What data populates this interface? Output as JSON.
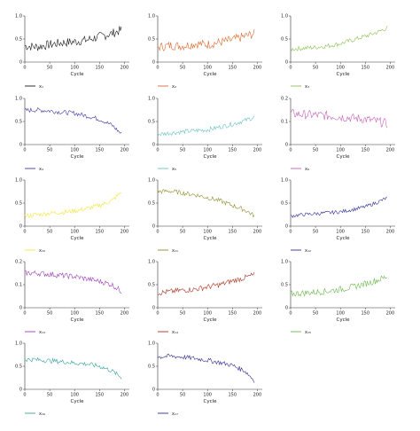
{
  "figure": {
    "xlabel": "Cycle"
  },
  "chart_data": [
    {
      "type": "line",
      "series": [
        {
          "name": "x1",
          "color": "#1a1a1a",
          "noise": 0.1,
          "y": [
            0.35,
            0.33,
            0.38,
            0.42,
            0.44,
            0.48,
            0.55,
            0.62,
            0.7
          ]
        }
      ],
      "legend": "x₁",
      "x": [
        0,
        25,
        50,
        75,
        100,
        125,
        150,
        175,
        195
      ],
      "xticks": [
        0,
        50,
        100,
        150,
        200
      ],
      "xlim": [
        0,
        210
      ],
      "ylim": [
        0,
        1
      ],
      "yticks": [
        "0",
        "0.5",
        "1.0"
      ],
      "xlabel": "Cycle"
    },
    {
      "type": "line",
      "series": [
        {
          "name": "x2",
          "color": "#d9692f",
          "noise": 0.1,
          "y": [
            0.32,
            0.36,
            0.35,
            0.4,
            0.38,
            0.43,
            0.48,
            0.56,
            0.62
          ]
        }
      ],
      "legend": "x₂",
      "x": [
        0,
        25,
        50,
        75,
        100,
        125,
        150,
        175,
        195
      ],
      "xticks": [
        0,
        50,
        100,
        150,
        200
      ],
      "xlim": [
        0,
        210
      ],
      "ylim": [
        0,
        1
      ],
      "yticks": [
        "0",
        "0.5",
        "1.0"
      ],
      "xlabel": "Cycle"
    },
    {
      "type": "line",
      "series": [
        {
          "name": "x3",
          "color": "#8cc152",
          "noise": 0.05,
          "y": [
            0.28,
            0.3,
            0.32,
            0.35,
            0.4,
            0.48,
            0.56,
            0.65,
            0.75
          ]
        }
      ],
      "legend": "x₃",
      "x": [
        0,
        25,
        50,
        75,
        100,
        125,
        150,
        175,
        195
      ],
      "xticks": [
        0,
        50,
        100,
        150,
        200
      ],
      "xlim": [
        0,
        210
      ],
      "ylim": [
        0,
        1
      ],
      "yticks": [
        "0",
        "0.5",
        "1.0"
      ],
      "xlabel": "Cycle"
    },
    {
      "type": "line",
      "series": [
        {
          "name": "x4",
          "color": "#3f3aa6",
          "noise": 0.05,
          "y": [
            0.74,
            0.75,
            0.73,
            0.7,
            0.68,
            0.62,
            0.55,
            0.42,
            0.22
          ]
        }
      ],
      "legend": "x₄",
      "x": [
        0,
        25,
        50,
        75,
        100,
        125,
        150,
        175,
        195
      ],
      "xticks": [
        0,
        50,
        100,
        150,
        200
      ],
      "xlim": [
        0,
        210
      ],
      "ylim": [
        0,
        1
      ],
      "yticks": [
        "0",
        "0.5",
        "1.0"
      ],
      "xlabel": "Cycle"
    },
    {
      "type": "line",
      "series": [
        {
          "name": "x5",
          "color": "#67c2c0",
          "noise": 0.05,
          "y": [
            0.22,
            0.25,
            0.28,
            0.3,
            0.32,
            0.38,
            0.44,
            0.52,
            0.6
          ]
        }
      ],
      "legend": "x₅",
      "x": [
        0,
        25,
        50,
        75,
        100,
        125,
        150,
        175,
        195
      ],
      "xticks": [
        0,
        50,
        100,
        150,
        200
      ],
      "xlim": [
        0,
        210
      ],
      "ylim": [
        0,
        1
      ],
      "yticks": [
        "0",
        "0.5",
        "1.0"
      ],
      "xlabel": "Cycle"
    },
    {
      "type": "line",
      "series": [
        {
          "name": "x6",
          "color": "#c562b3",
          "noise": 0.02,
          "y": [
            0.135,
            0.13,
            0.128,
            0.125,
            0.12,
            0.115,
            0.11,
            0.1,
            0.09
          ]
        }
      ],
      "legend": "x₆",
      "x": [
        0,
        25,
        50,
        75,
        100,
        125,
        150,
        175,
        195
      ],
      "xticks": [
        0,
        50,
        100,
        150,
        200
      ],
      "xlim": [
        0,
        210
      ],
      "ylim": [
        0,
        0.2
      ],
      "yticks": [
        "0",
        "0.1",
        "0.2"
      ],
      "xlabel": "Cycle"
    },
    {
      "type": "line",
      "series": [
        {
          "name": "x10",
          "color": "#f2e63a",
          "noise": 0.05,
          "y": [
            0.22,
            0.25,
            0.28,
            0.3,
            0.33,
            0.38,
            0.45,
            0.55,
            0.75
          ]
        }
      ],
      "legend": "x₁₀",
      "x": [
        0,
        25,
        50,
        75,
        100,
        125,
        150,
        175,
        195
      ],
      "xticks": [
        0,
        50,
        100,
        150,
        200
      ],
      "xlim": [
        0,
        210
      ],
      "ylim": [
        0,
        1
      ],
      "yticks": [
        "0",
        "0.5",
        "1.0"
      ],
      "xlabel": "Cycle"
    },
    {
      "type": "line",
      "series": [
        {
          "name": "x11",
          "color": "#8f8d2f",
          "noise": 0.05,
          "y": [
            0.75,
            0.76,
            0.72,
            0.68,
            0.62,
            0.55,
            0.45,
            0.35,
            0.22
          ]
        }
      ],
      "legend": "x₁₁",
      "x": [
        0,
        25,
        50,
        75,
        100,
        125,
        150,
        175,
        195
      ],
      "xticks": [
        0,
        50,
        100,
        150,
        200
      ],
      "xlim": [
        0,
        210
      ],
      "ylim": [
        0,
        1
      ],
      "yticks": [
        "0",
        "0.5",
        "1.0"
      ],
      "xlabel": "Cycle"
    },
    {
      "type": "line",
      "series": [
        {
          "name": "x12",
          "color": "#2f2f97",
          "noise": 0.04,
          "y": [
            0.22,
            0.25,
            0.27,
            0.29,
            0.31,
            0.36,
            0.42,
            0.52,
            0.62
          ]
        }
      ],
      "legend": "x₁₂",
      "x": [
        0,
        25,
        50,
        75,
        100,
        125,
        150,
        175,
        195
      ],
      "xticks": [
        0,
        50,
        100,
        150,
        200
      ],
      "xlim": [
        0,
        210
      ],
      "ylim": [
        0,
        1
      ],
      "yticks": [
        "0",
        "0.5",
        "1.0"
      ],
      "xlabel": "Cycle"
    },
    {
      "type": "line",
      "series": [
        {
          "name": "x13",
          "color": "#9b3fb8",
          "noise": 0.012,
          "y": [
            0.15,
            0.15,
            0.145,
            0.14,
            0.135,
            0.125,
            0.115,
            0.1,
            0.07
          ]
        }
      ],
      "legend": "x₁₃",
      "x": [
        0,
        25,
        50,
        75,
        100,
        125,
        150,
        175,
        195
      ],
      "xticks": [
        0,
        50,
        100,
        150,
        200
      ],
      "xlim": [
        0,
        210
      ],
      "ylim": [
        0,
        0.2
      ],
      "yticks": [
        "0",
        "0.1",
        "0.2"
      ],
      "xlabel": "Cycle"
    },
    {
      "type": "line",
      "series": [
        {
          "name": "x14",
          "color": "#a8321f",
          "noise": 0.06,
          "y": [
            0.32,
            0.35,
            0.38,
            0.4,
            0.45,
            0.5,
            0.58,
            0.65,
            0.72
          ]
        }
      ],
      "legend": "x₁₄",
      "x": [
        0,
        25,
        50,
        75,
        100,
        125,
        150,
        175,
        195
      ],
      "xticks": [
        0,
        50,
        100,
        150,
        200
      ],
      "xlim": [
        0,
        210
      ],
      "ylim": [
        0,
        1
      ],
      "yticks": [
        "0",
        "0.5",
        "1.0"
      ],
      "xlabel": "Cycle"
    },
    {
      "type": "line",
      "series": [
        {
          "name": "x15",
          "color": "#6ab84d",
          "noise": 0.07,
          "y": [
            0.3,
            0.32,
            0.34,
            0.36,
            0.4,
            0.45,
            0.52,
            0.6,
            0.68
          ]
        }
      ],
      "legend": "x₁₅",
      "x": [
        0,
        25,
        50,
        75,
        100,
        125,
        150,
        175,
        195
      ],
      "xticks": [
        0,
        50,
        100,
        150,
        200
      ],
      "xlim": [
        0,
        210
      ],
      "ylim": [
        0,
        1
      ],
      "yticks": [
        "0",
        "0.5",
        "1.0"
      ],
      "xlabel": "Cycle"
    },
    {
      "type": "line",
      "series": [
        {
          "name": "x16",
          "color": "#3aa3a0",
          "noise": 0.05,
          "y": [
            0.65,
            0.64,
            0.62,
            0.6,
            0.57,
            0.55,
            0.5,
            0.4,
            0.25
          ]
        }
      ],
      "legend": "x₁₆",
      "x": [
        0,
        25,
        50,
        75,
        100,
        125,
        150,
        175,
        195
      ],
      "xticks": [
        0,
        50,
        100,
        150,
        200
      ],
      "xlim": [
        0,
        210
      ],
      "ylim": [
        0,
        1
      ],
      "yticks": [
        "0",
        "0.5",
        "1.0"
      ],
      "xlabel": "Cycle"
    },
    {
      "type": "line",
      "series": [
        {
          "name": "x17",
          "color": "#2e2a8f",
          "noise": 0.05,
          "y": [
            0.7,
            0.72,
            0.7,
            0.67,
            0.63,
            0.58,
            0.52,
            0.4,
            0.18
          ]
        }
      ],
      "legend": "x₁₇",
      "x": [
        0,
        25,
        50,
        75,
        100,
        125,
        150,
        175,
        195
      ],
      "xticks": [
        0,
        50,
        100,
        150,
        200
      ],
      "xlim": [
        0,
        210
      ],
      "ylim": [
        0,
        1
      ],
      "yticks": [
        "0",
        "0.5",
        "1.0"
      ],
      "xlabel": "Cycle"
    }
  ]
}
